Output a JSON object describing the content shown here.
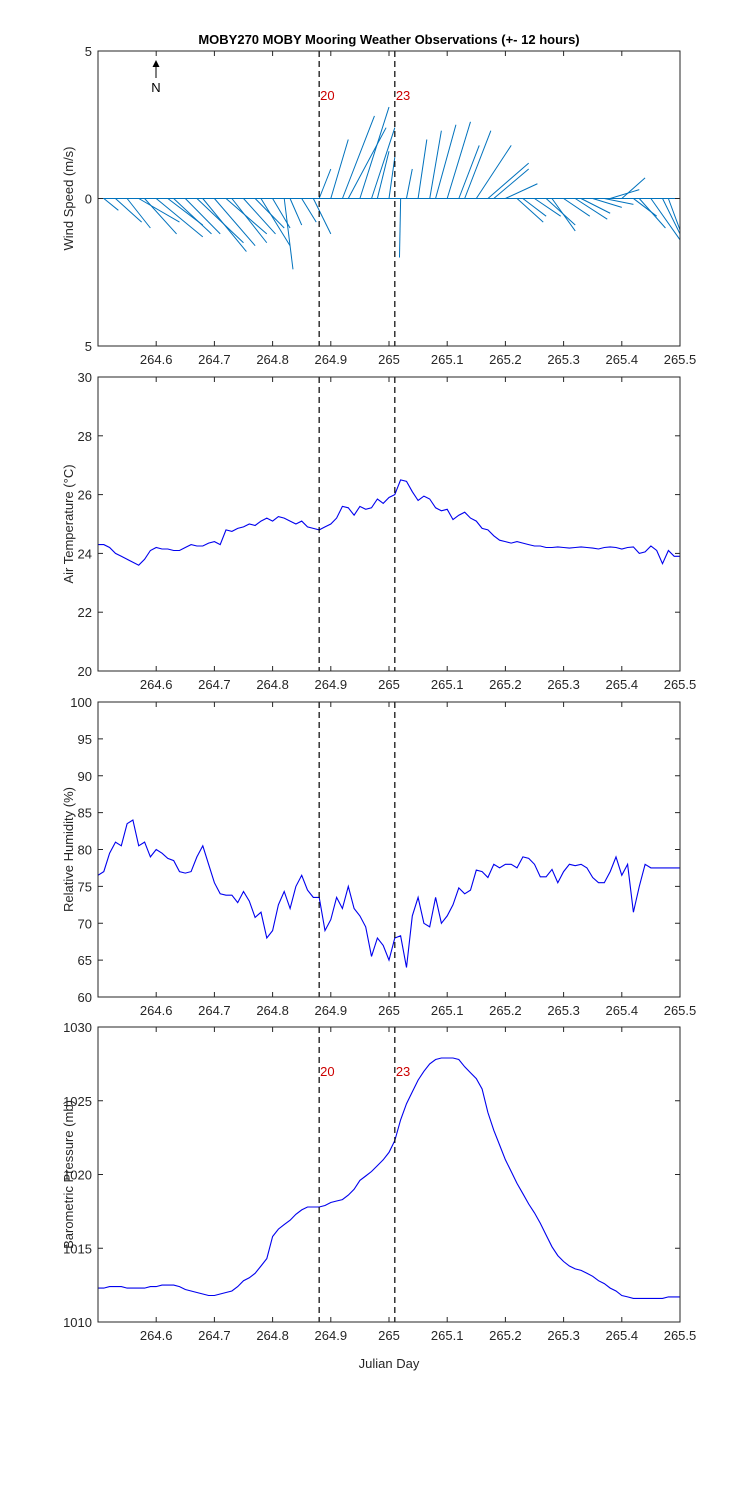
{
  "figure": {
    "title": "MOBY270 MOBY Mooring Weather Observations (+- 12 hours)",
    "xlabel": "Julian Day",
    "north_label": "N",
    "marker_labels": [
      "20",
      "23"
    ]
  },
  "chart_data": [
    {
      "type": "line",
      "name": "wind",
      "ylabel": "Wind Speed (m/s)",
      "xlim": [
        264.5,
        265.5
      ],
      "ylim": [
        -5,
        5
      ],
      "yticks": [
        -5,
        0,
        5
      ],
      "yticklabels": [
        "5",
        "0",
        "5"
      ],
      "xticks": [
        264.6,
        264.7,
        264.8,
        264.9,
        265.0,
        265.1,
        265.2,
        265.3,
        265.4,
        265.5
      ],
      "xticklabels": [
        "264.6",
        "264.7",
        "264.8",
        "264.9",
        "265",
        "265.1",
        "265.2",
        "265.3",
        "265.4",
        "265.5"
      ],
      "markers": [
        264.88,
        265.01
      ],
      "show_markers_labels": true,
      "sticks": {
        "x": [
          264.51,
          264.53,
          264.55,
          264.57,
          264.58,
          264.6,
          264.62,
          264.63,
          264.65,
          264.67,
          264.68,
          264.7,
          264.72,
          264.73,
          264.75,
          264.77,
          264.78,
          264.8,
          264.82,
          264.83,
          264.85,
          264.87,
          264.88,
          264.9,
          264.92,
          264.93,
          264.95,
          264.97,
          264.98,
          265.0,
          265.02,
          265.03,
          265.05,
          265.07,
          265.08,
          265.1,
          265.12,
          265.13,
          265.15,
          265.17,
          265.18,
          265.2,
          265.22,
          265.23,
          265.25,
          265.27,
          265.28,
          265.3,
          265.32,
          265.33,
          265.35,
          265.37,
          265.38,
          265.4,
          265.42,
          265.43,
          265.45,
          265.47,
          265.48,
          265.5
        ],
        "u": [
          0.025,
          0.045,
          0.04,
          0.07,
          0.055,
          0.08,
          0.06,
          0.065,
          0.06,
          0.08,
          0.075,
          0.07,
          0.07,
          0.06,
          0.055,
          0.05,
          0.05,
          0.03,
          0.015,
          0.02,
          0.025,
          0.03,
          0.02,
          0.03,
          0.055,
          0.065,
          0.05,
          0.04,
          0.02,
          0.01,
          -0.002,
          0.01,
          0.015,
          0.02,
          0.035,
          0.04,
          0.035,
          0.045,
          0.06,
          0.07,
          0.06,
          0.055,
          0.045,
          0.04,
          0.045,
          0.05,
          0.04,
          0.045,
          0.055,
          0.05,
          0.05,
          0.05,
          0.05,
          0.04,
          0.04,
          0.045,
          0.05,
          0.04,
          0.03,
          0.01
        ],
        "v": [
          0.4,
          0.8,
          1.0,
          0.8,
          1.2,
          1.3,
          0.9,
          1.2,
          1.2,
          1.5,
          1.8,
          1.6,
          1.2,
          1.5,
          1.2,
          1.0,
          1.6,
          1.0,
          2.4,
          0.9,
          0.8,
          1.2,
          -1.0,
          -2.0,
          -2.8,
          -2.4,
          -3.1,
          -2.4,
          -1.6,
          -1.4,
          2.0,
          -1.0,
          -2.0,
          -2.3,
          -2.5,
          -2.6,
          -1.8,
          -2.3,
          -1.8,
          -1.2,
          -1.0,
          -0.5,
          0.8,
          0.6,
          0.6,
          0.9,
          1.1,
          0.6,
          0.7,
          0.5,
          0.3,
          0.2,
          -0.3,
          -0.7,
          0.6,
          1.0,
          1.4,
          1.6,
          1.6,
          1.0
        ]
      }
    },
    {
      "type": "line",
      "name": "air-temperature",
      "ylabel": "Air Temperature (°C)",
      "xlim": [
        264.5,
        265.5
      ],
      "ylim": [
        20,
        30
      ],
      "yticks": [
        20,
        22,
        24,
        26,
        28,
        30
      ],
      "yticklabels": [
        "20",
        "22",
        "24",
        "26",
        "28",
        "30"
      ],
      "xticks": [
        264.6,
        264.7,
        264.8,
        264.9,
        265.0,
        265.1,
        265.2,
        265.3,
        265.4,
        265.5
      ],
      "xticklabels": [
        "264.6",
        "264.7",
        "264.8",
        "264.9",
        "265",
        "265.1",
        "265.2",
        "265.3",
        "265.4",
        "265.5"
      ],
      "markers": [
        264.88,
        265.01
      ],
      "x": [
        264.5,
        264.51,
        264.52,
        264.53,
        264.54,
        264.55,
        264.56,
        264.57,
        264.58,
        264.59,
        264.6,
        264.61,
        264.62,
        264.63,
        264.64,
        264.65,
        264.66,
        264.67,
        264.68,
        264.69,
        264.7,
        264.71,
        264.72,
        264.73,
        264.74,
        264.75,
        264.76,
        264.77,
        264.78,
        264.79,
        264.8,
        264.81,
        264.82,
        264.83,
        264.84,
        264.85,
        264.86,
        264.87,
        264.88,
        264.89,
        264.9,
        264.91,
        264.92,
        264.93,
        264.94,
        264.95,
        264.96,
        264.97,
        264.98,
        264.99,
        265.0,
        265.01,
        265.02,
        265.03,
        265.04,
        265.05,
        265.06,
        265.07,
        265.08,
        265.09,
        265.1,
        265.11,
        265.12,
        265.13,
        265.14,
        265.15,
        265.16,
        265.17,
        265.18,
        265.19,
        265.2,
        265.21,
        265.22,
        265.23,
        265.24,
        265.25,
        265.26,
        265.27,
        265.28,
        265.29,
        265.3,
        265.31,
        265.32,
        265.33,
        265.34,
        265.35,
        265.36,
        265.37,
        265.38,
        265.39,
        265.4,
        265.41,
        265.42,
        265.43,
        265.44,
        265.45,
        265.46,
        265.47,
        265.48,
        265.49,
        265.5
      ],
      "y": [
        24.3,
        24.3,
        24.2,
        24.0,
        23.9,
        23.8,
        23.7,
        23.6,
        23.8,
        24.1,
        24.2,
        24.15,
        24.15,
        24.1,
        24.1,
        24.2,
        24.3,
        24.25,
        24.25,
        24.35,
        24.4,
        24.3,
        24.8,
        24.75,
        24.85,
        24.9,
        25.0,
        24.95,
        25.1,
        25.2,
        25.1,
        25.25,
        25.2,
        25.1,
        25.0,
        25.1,
        24.9,
        24.85,
        24.8,
        24.9,
        25.0,
        25.2,
        25.6,
        25.55,
        25.3,
        25.6,
        25.5,
        25.55,
        25.85,
        25.7,
        25.9,
        26.0,
        26.5,
        26.45,
        26.1,
        25.8,
        25.95,
        25.85,
        25.55,
        25.45,
        25.5,
        25.15,
        25.3,
        25.4,
        25.2,
        25.1,
        24.85,
        24.8,
        24.6,
        24.45,
        24.4,
        24.35,
        24.4,
        24.35,
        24.3,
        24.25,
        24.25,
        24.2,
        24.2,
        24.22,
        24.2,
        24.18,
        24.2,
        24.22,
        24.2,
        24.18,
        24.15,
        24.2,
        24.22,
        24.2,
        24.15,
        24.2,
        24.22,
        24.0,
        24.05,
        24.25,
        24.1,
        23.65,
        24.1,
        23.9,
        23.9
      ]
    },
    {
      "type": "line",
      "name": "relative-humidity",
      "ylabel": "Relative Humidity (%)",
      "xlim": [
        264.5,
        265.5
      ],
      "ylim": [
        60,
        100
      ],
      "yticks": [
        60,
        65,
        70,
        75,
        80,
        85,
        90,
        95,
        100
      ],
      "yticklabels": [
        "60",
        "65",
        "70",
        "75",
        "80",
        "85",
        "90",
        "95",
        "100"
      ],
      "xticks": [
        264.6,
        264.7,
        264.8,
        264.9,
        265.0,
        265.1,
        265.2,
        265.3,
        265.4,
        265.5
      ],
      "xticklabels": [
        "264.6",
        "264.7",
        "264.8",
        "264.9",
        "265",
        "265.1",
        "265.2",
        "265.3",
        "265.4",
        "265.5"
      ],
      "markers": [
        264.88,
        265.01
      ],
      "x": [
        264.5,
        264.51,
        264.52,
        264.53,
        264.54,
        264.55,
        264.56,
        264.57,
        264.58,
        264.59,
        264.6,
        264.61,
        264.62,
        264.63,
        264.64,
        264.65,
        264.66,
        264.67,
        264.68,
        264.69,
        264.7,
        264.71,
        264.72,
        264.73,
        264.74,
        264.75,
        264.76,
        264.77,
        264.78,
        264.79,
        264.8,
        264.81,
        264.82,
        264.83,
        264.84,
        264.85,
        264.86,
        264.87,
        264.88,
        264.89,
        264.9,
        264.91,
        264.92,
        264.93,
        264.94,
        264.95,
        264.96,
        264.97,
        264.98,
        264.99,
        265.0,
        265.01,
        265.02,
        265.03,
        265.04,
        265.05,
        265.06,
        265.07,
        265.08,
        265.09,
        265.1,
        265.11,
        265.12,
        265.13,
        265.14,
        265.15,
        265.16,
        265.17,
        265.18,
        265.19,
        265.2,
        265.21,
        265.22,
        265.23,
        265.24,
        265.25,
        265.26,
        265.27,
        265.28,
        265.29,
        265.3,
        265.31,
        265.32,
        265.33,
        265.34,
        265.35,
        265.36,
        265.37,
        265.38,
        265.39,
        265.4,
        265.41,
        265.42,
        265.43,
        265.44,
        265.45,
        265.46,
        265.47,
        265.48,
        265.49,
        265.5
      ],
      "y": [
        76.5,
        77.0,
        79.5,
        81.0,
        80.5,
        83.5,
        84.0,
        80.5,
        81.0,
        79.0,
        80.0,
        79.5,
        78.8,
        78.5,
        77.0,
        76.8,
        77.0,
        79.0,
        80.5,
        78.0,
        75.5,
        74.0,
        73.8,
        73.8,
        72.8,
        74.3,
        73.0,
        70.8,
        71.5,
        68.0,
        69.0,
        72.5,
        74.3,
        72.0,
        75.0,
        76.5,
        74.5,
        73.5,
        73.5,
        69.0,
        70.5,
        73.5,
        72.0,
        75.0,
        72.0,
        71.0,
        69.5,
        65.5,
        68.0,
        67.0,
        65.0,
        68.0,
        68.3,
        64.0,
        71.0,
        73.5,
        70.0,
        69.5,
        73.5,
        70.0,
        71.0,
        72.5,
        74.8,
        74.0,
        74.5,
        77.2,
        77.0,
        76.2,
        78.0,
        77.5,
        78.0,
        78.0,
        77.5,
        79.0,
        78.8,
        78.0,
        76.3,
        76.3,
        77.3,
        75.5,
        77.0,
        78.0,
        77.8,
        78.0,
        77.5,
        76.2,
        75.5,
        75.5,
        77.0,
        79.0,
        76.5,
        78.0,
        71.5,
        75.0,
        78.0,
        77.5,
        77.5,
        77.5,
        77.5,
        77.5,
        77.5
      ]
    },
    {
      "type": "line",
      "name": "barometric-pressure",
      "ylabel": "Barometric Pressure (mb)",
      "xlim": [
        264.5,
        265.5
      ],
      "ylim": [
        1010,
        1030
      ],
      "yticks": [
        1010,
        1015,
        1020,
        1025,
        1030
      ],
      "yticklabels": [
        "1010",
        "1015",
        "1020",
        "1025",
        "1030"
      ],
      "xticks": [
        264.6,
        264.7,
        264.8,
        264.9,
        265.0,
        265.1,
        265.2,
        265.3,
        265.4,
        265.5
      ],
      "xticklabels": [
        "264.6",
        "264.7",
        "264.8",
        "264.9",
        "265",
        "265.1",
        "265.2",
        "265.3",
        "265.4",
        "265.5"
      ],
      "markers": [
        264.88,
        265.01
      ],
      "show_markers_labels": true,
      "x": [
        264.5,
        264.51,
        264.52,
        264.53,
        264.54,
        264.55,
        264.56,
        264.57,
        264.58,
        264.59,
        264.6,
        264.61,
        264.62,
        264.63,
        264.64,
        264.65,
        264.66,
        264.67,
        264.68,
        264.69,
        264.7,
        264.71,
        264.72,
        264.73,
        264.74,
        264.75,
        264.76,
        264.77,
        264.78,
        264.79,
        264.8,
        264.81,
        264.82,
        264.83,
        264.84,
        264.85,
        264.86,
        264.87,
        264.88,
        264.89,
        264.9,
        264.91,
        264.92,
        264.93,
        264.94,
        264.95,
        264.96,
        264.97,
        264.98,
        264.99,
        265.0,
        265.01,
        265.02,
        265.03,
        265.04,
        265.05,
        265.06,
        265.07,
        265.08,
        265.09,
        265.1,
        265.11,
        265.12,
        265.13,
        265.14,
        265.15,
        265.16,
        265.17,
        265.18,
        265.19,
        265.2,
        265.21,
        265.22,
        265.23,
        265.24,
        265.25,
        265.26,
        265.27,
        265.28,
        265.29,
        265.3,
        265.31,
        265.32,
        265.33,
        265.34,
        265.35,
        265.36,
        265.37,
        265.38,
        265.39,
        265.4,
        265.41,
        265.42,
        265.43,
        265.44,
        265.45,
        265.46,
        265.47,
        265.48,
        265.49,
        265.5
      ],
      "y": [
        1012.3,
        1012.3,
        1012.4,
        1012.4,
        1012.4,
        1012.3,
        1012.3,
        1012.3,
        1012.3,
        1012.4,
        1012.4,
        1012.5,
        1012.5,
        1012.5,
        1012.4,
        1012.2,
        1012.1,
        1012.0,
        1011.9,
        1011.8,
        1011.8,
        1011.9,
        1012.0,
        1012.1,
        1012.4,
        1012.8,
        1013.0,
        1013.3,
        1013.8,
        1014.3,
        1015.8,
        1016.3,
        1016.6,
        1016.9,
        1017.3,
        1017.6,
        1017.8,
        1017.8,
        1017.8,
        1017.9,
        1018.1,
        1018.2,
        1018.3,
        1018.6,
        1019.0,
        1019.6,
        1019.9,
        1020.2,
        1020.6,
        1021.0,
        1021.5,
        1022.3,
        1023.7,
        1024.8,
        1025.6,
        1026.4,
        1027.0,
        1027.5,
        1027.8,
        1027.9,
        1027.9,
        1027.9,
        1027.8,
        1027.3,
        1026.9,
        1026.5,
        1025.8,
        1024.2,
        1023.0,
        1022.0,
        1021.0,
        1020.2,
        1019.4,
        1018.7,
        1018.0,
        1017.4,
        1016.7,
        1015.9,
        1015.1,
        1014.5,
        1014.1,
        1013.8,
        1013.6,
        1013.5,
        1013.3,
        1013.1,
        1012.8,
        1012.6,
        1012.3,
        1012.1,
        1011.8,
        1011.7,
        1011.6,
        1011.6,
        1011.6,
        1011.6,
        1011.6,
        1011.6,
        1011.7,
        1011.7,
        1011.7
      ]
    }
  ]
}
